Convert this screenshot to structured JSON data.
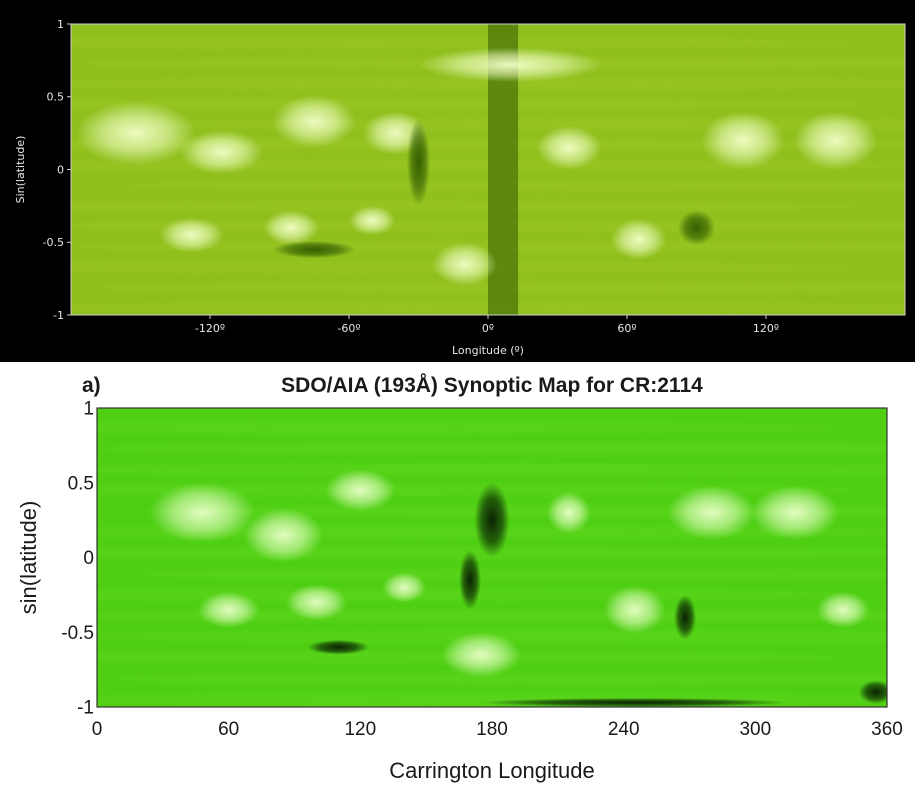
{
  "chart_data": [
    {
      "type": "heatmap",
      "panel": "top",
      "title": "",
      "xlabel": "Longitude (º)",
      "ylabel": "Sin(latitude)",
      "xlim": [
        -180,
        180
      ],
      "ylim": [
        -1,
        1
      ],
      "x_ticks": [
        {
          "value": -120,
          "label": "-120º"
        },
        {
          "value": -60,
          "label": "-60º"
        },
        {
          "value": 0,
          "label": "0º"
        },
        {
          "value": 60,
          "label": "60º"
        },
        {
          "value": 120,
          "label": "120º"
        }
      ],
      "y_ticks": [
        {
          "value": 1,
          "label": "1"
        },
        {
          "value": 0.5,
          "label": "0.5"
        },
        {
          "value": 0,
          "label": "0"
        },
        {
          "value": -0.5,
          "label": "-0.5"
        },
        {
          "value": -1,
          "label": "-1"
        }
      ],
      "background": "#000000",
      "colors": {
        "base": "#8fbf1c",
        "bright": "#f2ffc8",
        "dark": "#2f5a00",
        "mid": "#a9d132",
        "text": "#e6e6e6"
      },
      "dark_stripe_longitude": [
        0,
        13
      ],
      "bright_regions": [
        {
          "lon": -152,
          "lat": 0.25,
          "rlon": 26,
          "rlat": 0.22
        },
        {
          "lon": -115,
          "lat": 0.12,
          "rlon": 18,
          "rlat": 0.15
        },
        {
          "lon": -75,
          "lat": 0.33,
          "rlon": 18,
          "rlat": 0.18
        },
        {
          "lon": -40,
          "lat": 0.25,
          "rlon": 14,
          "rlat": 0.15
        },
        {
          "lon": -128,
          "lat": -0.45,
          "rlon": 14,
          "rlat": 0.12
        },
        {
          "lon": -85,
          "lat": -0.4,
          "rlon": 12,
          "rlat": 0.12
        },
        {
          "lon": -50,
          "lat": -0.35,
          "rlon": 10,
          "rlat": 0.1
        },
        {
          "lon": -10,
          "lat": -0.65,
          "rlon": 14,
          "rlat": 0.15
        },
        {
          "lon": 35,
          "lat": 0.15,
          "rlon": 14,
          "rlat": 0.15
        },
        {
          "lon": 65,
          "lat": -0.48,
          "rlon": 12,
          "rlat": 0.14
        },
        {
          "lon": 110,
          "lat": 0.2,
          "rlon": 18,
          "rlat": 0.2
        },
        {
          "lon": 150,
          "lat": 0.2,
          "rlon": 18,
          "rlat": 0.2
        },
        {
          "lon": 10,
          "lat": 0.72,
          "rlon": 40,
          "rlat": 0.12
        }
      ],
      "dark_regions": [
        {
          "lon": -30,
          "lat": 0.05,
          "rlon": 5,
          "rlat": 0.3
        },
        {
          "lon": -75,
          "lat": -0.55,
          "rlon": 18,
          "rlat": 0.06
        },
        {
          "lon": 90,
          "lat": -0.4,
          "rlon": 8,
          "rlat": 0.12
        }
      ]
    },
    {
      "type": "heatmap",
      "panel": "bottom",
      "panel_label": "a)",
      "title": "SDO/AIA (193Å) Synoptic Map for CR:2114",
      "xlabel": "Carrington Longitude",
      "ylabel": "sin(latitude)",
      "xlim": [
        0,
        360
      ],
      "ylim": [
        -1,
        1
      ],
      "x_ticks": [
        {
          "value": 0,
          "label": "0"
        },
        {
          "value": 60,
          "label": "60"
        },
        {
          "value": 120,
          "label": "120"
        },
        {
          "value": 180,
          "label": "180"
        },
        {
          "value": 240,
          "label": "240"
        },
        {
          "value": 300,
          "label": "300"
        },
        {
          "value": 360,
          "label": "360"
        }
      ],
      "y_ticks": [
        {
          "value": 1,
          "label": "1"
        },
        {
          "value": 0.5,
          "label": "0.5"
        },
        {
          "value": 0,
          "label": "0"
        },
        {
          "value": -0.5,
          "label": "-0.5"
        },
        {
          "value": -1,
          "label": "-1"
        }
      ],
      "background": "#ffffff",
      "colors": {
        "base": "#4fcf14",
        "bright": "#e9ffc8",
        "dark": "#061a02",
        "mid": "#6fe02a",
        "text": "#1a1a1a"
      },
      "bright_regions": [
        {
          "lon": 48,
          "lat": 0.3,
          "rlon": 24,
          "rlat": 0.2
        },
        {
          "lon": 85,
          "lat": 0.15,
          "rlon": 18,
          "rlat": 0.18
        },
        {
          "lon": 120,
          "lat": 0.45,
          "rlon": 16,
          "rlat": 0.14
        },
        {
          "lon": 215,
          "lat": 0.3,
          "rlon": 10,
          "rlat": 0.14
        },
        {
          "lon": 280,
          "lat": 0.3,
          "rlon": 20,
          "rlat": 0.18
        },
        {
          "lon": 318,
          "lat": 0.3,
          "rlon": 20,
          "rlat": 0.18
        },
        {
          "lon": 60,
          "lat": -0.35,
          "rlon": 14,
          "rlat": 0.12
        },
        {
          "lon": 100,
          "lat": -0.3,
          "rlon": 14,
          "rlat": 0.12
        },
        {
          "lon": 140,
          "lat": -0.2,
          "rlon": 10,
          "rlat": 0.1
        },
        {
          "lon": 175,
          "lat": -0.65,
          "rlon": 18,
          "rlat": 0.15
        },
        {
          "lon": 245,
          "lat": -0.35,
          "rlon": 14,
          "rlat": 0.16
        },
        {
          "lon": 340,
          "lat": -0.35,
          "rlon": 12,
          "rlat": 0.12
        }
      ],
      "dark_regions": [
        {
          "lon": 180,
          "lat": 0.25,
          "rlon": 8,
          "rlat": 0.25
        },
        {
          "lon": 170,
          "lat": -0.15,
          "rlon": 5,
          "rlat": 0.2
        },
        {
          "lon": 268,
          "lat": -0.4,
          "rlon": 5,
          "rlat": 0.15
        },
        {
          "lon": 110,
          "lat": -0.6,
          "rlon": 14,
          "rlat": 0.05
        },
        {
          "lon": 355,
          "lat": -0.9,
          "rlon": 8,
          "rlat": 0.08
        },
        {
          "lon": 245,
          "lat": -0.97,
          "rlon": 70,
          "rlat": 0.03
        }
      ]
    }
  ]
}
